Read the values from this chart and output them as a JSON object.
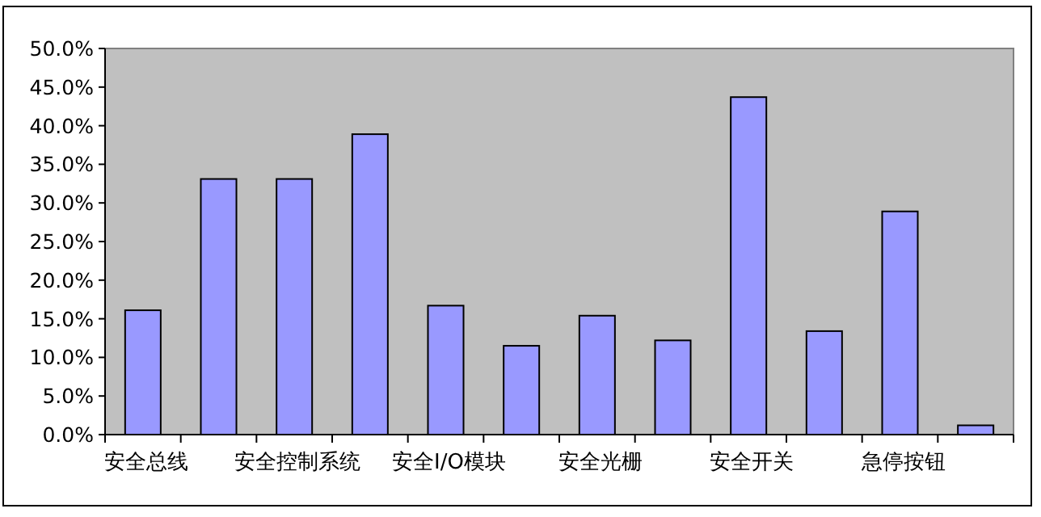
{
  "chart_data": {
    "type": "bar",
    "categories": [
      "安全总线",
      null,
      "安全控制系统",
      null,
      "安全I/O模块",
      null,
      "安全光栅",
      null,
      "安全开关",
      null,
      "急停按钮",
      null
    ],
    "values": [
      16.1,
      33.1,
      33.1,
      38.9,
      16.7,
      11.5,
      15.4,
      12.2,
      43.7,
      13.4,
      28.9,
      1.2
    ],
    "color": "#9999ff",
    "ylim": [
      0,
      50
    ],
    "yticks": [
      {
        "value": 0,
        "label": "0.0%"
      },
      {
        "value": 5,
        "label": "5.0%"
      },
      {
        "value": 10,
        "label": "10.0%"
      },
      {
        "value": 15,
        "label": "15.0%"
      },
      {
        "value": 20,
        "label": "20.0%"
      },
      {
        "value": 25,
        "label": "25.0%"
      },
      {
        "value": 30,
        "label": "30.0%"
      },
      {
        "value": 35,
        "label": "35.0%"
      },
      {
        "value": 40,
        "label": "40.0%"
      },
      {
        "value": 45,
        "label": "45.0%"
      },
      {
        "value": 50,
        "label": "50.0%"
      }
    ],
    "grid": false
  }
}
